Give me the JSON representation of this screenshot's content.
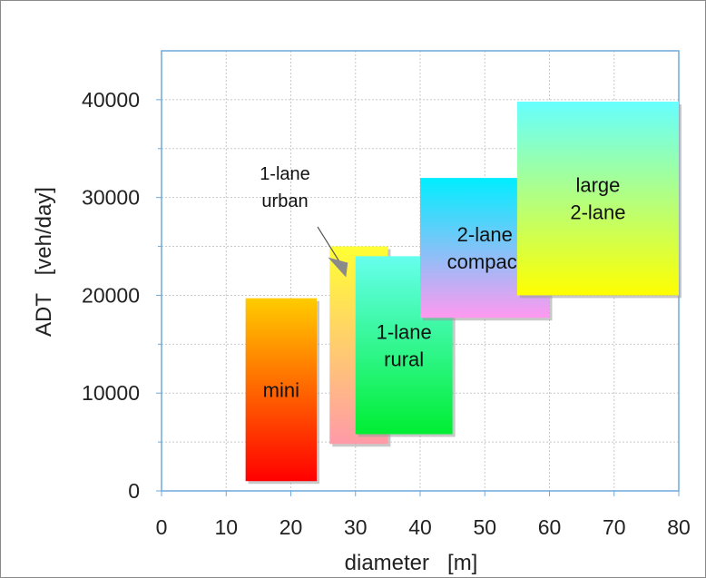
{
  "chart_data": {
    "type": "range-box",
    "xlabel": "diameter   [m]",
    "ylabel": "ADT   [veh/day]",
    "xlim": [
      0,
      80
    ],
    "ylim": [
      0,
      45000
    ],
    "x_ticks": [
      0,
      10,
      20,
      30,
      40,
      50,
      60,
      70,
      80
    ],
    "y_ticks": [
      0,
      10000,
      20000,
      30000,
      40000
    ],
    "grid": true,
    "boxes": [
      {
        "name": "mini",
        "label_lines": [
          "mini"
        ],
        "x": [
          13,
          24
        ],
        "y": [
          1000,
          19700
        ],
        "gradient": [
          "#ffcc00",
          "#ff0000"
        ]
      },
      {
        "name": "1-lane urban",
        "label_lines": [],
        "x": [
          26,
          35
        ],
        "y": [
          4800,
          25000
        ],
        "gradient": [
          "#ffff33",
          "#ff9aa8"
        ]
      },
      {
        "name": "1-lane rural",
        "label_lines": [
          "1-lane",
          "rural"
        ],
        "x": [
          30,
          45
        ],
        "y": [
          5800,
          24000
        ],
        "gradient": [
          "#66ffee",
          "#00ee33"
        ]
      },
      {
        "name": "2-lane compact",
        "label_lines": [
          "2-lane",
          "compact"
        ],
        "x": [
          40,
          60
        ],
        "y": [
          17700,
          32000
        ],
        "gradient": [
          "#00eeff",
          "#ff99f0"
        ]
      },
      {
        "name": "large 2-lane",
        "label_lines": [
          "large",
          "2-lane"
        ],
        "x": [
          55,
          80
        ],
        "y": [
          20000,
          39800
        ],
        "gradient": [
          "#66ffff",
          "#ffff00"
        ]
      }
    ],
    "annotations": [
      {
        "text_lines": [
          "1-lane",
          "urban"
        ],
        "target": "1-lane urban"
      }
    ]
  }
}
